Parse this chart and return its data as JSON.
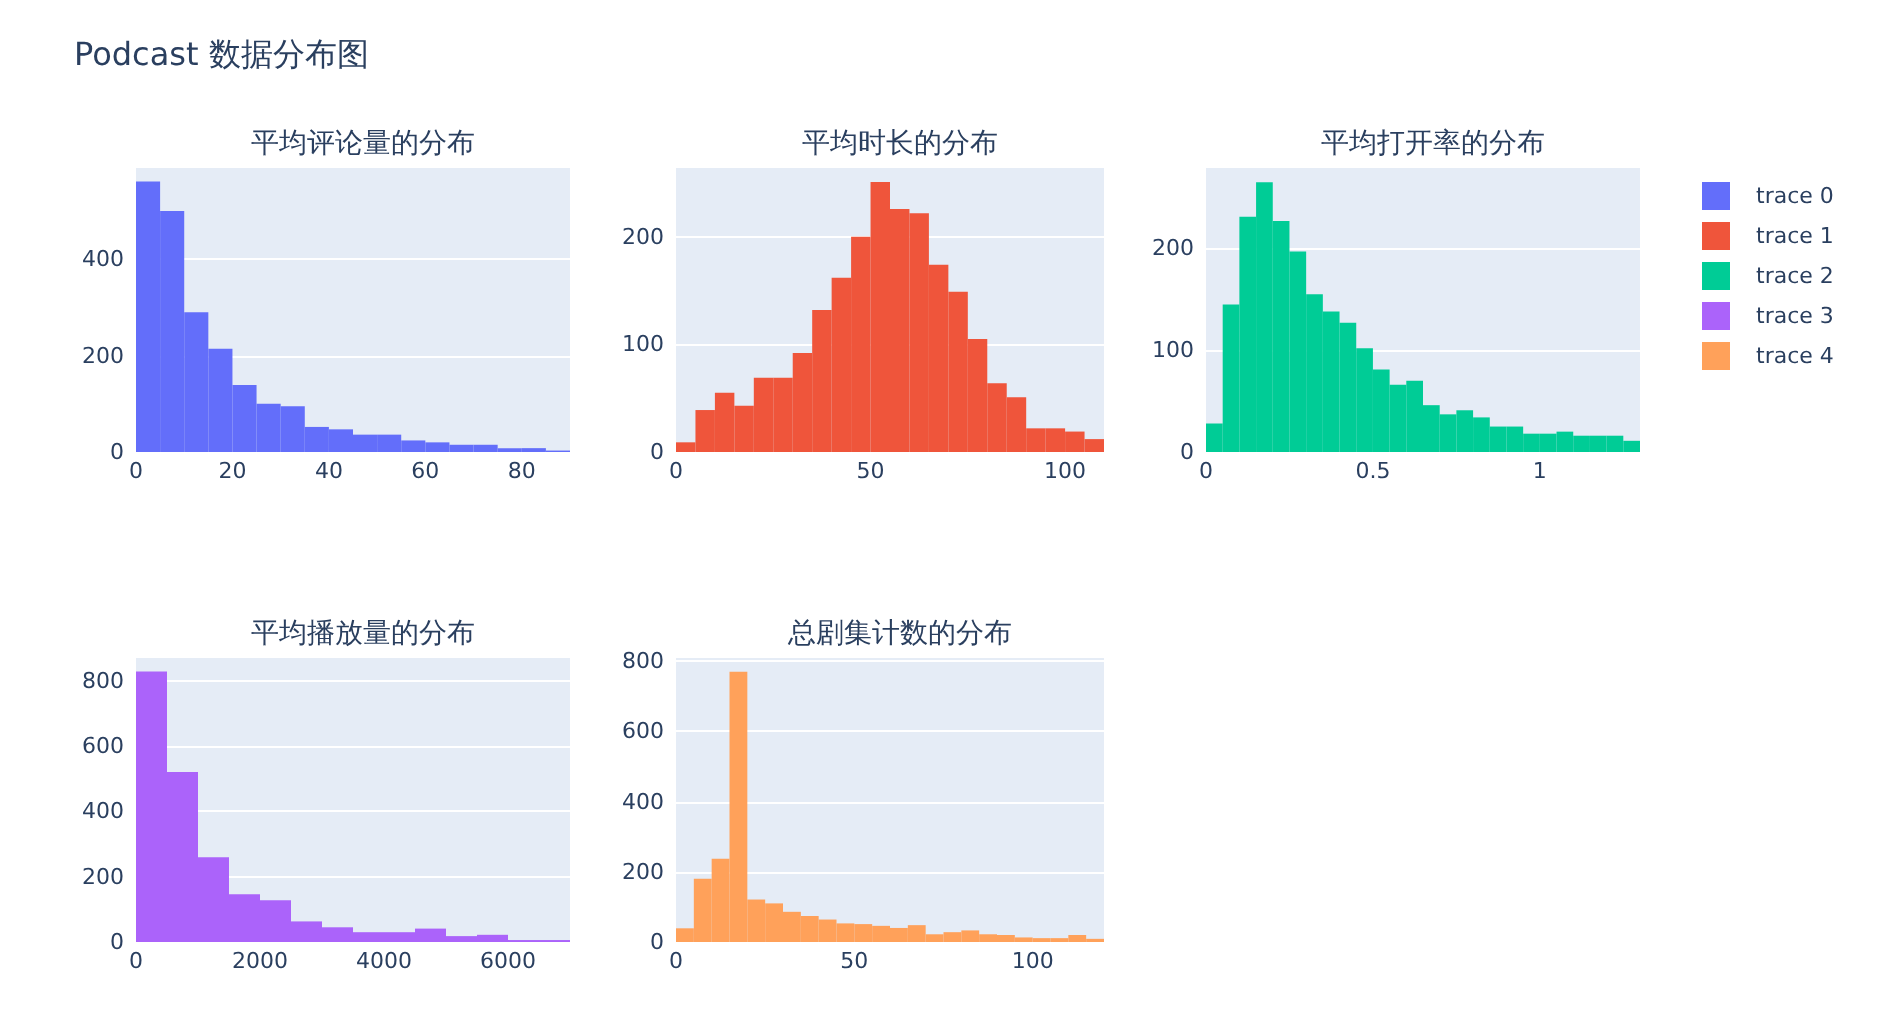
{
  "chart_data": [
    {
      "type": "histogram",
      "title": "Podcast 数据分布图",
      "subtitle": "平均评论量的分布",
      "bins": [
        0,
        5,
        10,
        15,
        20,
        25,
        30,
        35,
        40,
        45,
        50,
        55,
        60,
        65,
        70,
        75,
        80,
        85,
        90
      ],
      "series": [
        {
          "name": "trace 0",
          "color": "#636efa",
          "values": [
            561,
            500,
            290,
            214,
            139,
            100,
            95,
            52,
            47,
            36,
            36,
            24,
            20,
            15,
            15,
            8,
            8,
            3
          ]
        }
      ],
      "xlim": [
        0,
        90
      ],
      "xticks": [
        0,
        20,
        40,
        60,
        80
      ],
      "ylim": [
        0,
        589
      ],
      "yticks": [
        0,
        200,
        400
      ],
      "grid": "y",
      "legend": "right"
    },
    {
      "type": "histogram",
      "subtitle": "平均时长的分布",
      "bins": [
        0,
        5,
        10,
        15,
        20,
        25,
        30,
        35,
        40,
        45,
        50,
        55,
        60,
        65,
        70,
        75,
        80,
        85,
        90,
        95,
        100,
        105,
        110
      ],
      "series": [
        {
          "name": "trace 1",
          "color": "#ef553b",
          "values": [
            9,
            39,
            55,
            43,
            69,
            69,
            92,
            132,
            162,
            200,
            251,
            226,
            222,
            174,
            149,
            105,
            64,
            51,
            22,
            22,
            19,
            12
          ]
        }
      ],
      "xlim": [
        0,
        110
      ],
      "xticks": [
        0,
        50,
        100
      ],
      "ylim": [
        0,
        264
      ],
      "yticks": [
        0,
        100,
        200
      ],
      "grid": "y",
      "legend": "right"
    },
    {
      "type": "histogram",
      "subtitle": "平均打开率的分布",
      "bins": [
        0,
        0.05,
        0.1,
        0.15,
        0.2,
        0.25,
        0.3,
        0.35,
        0.4,
        0.45,
        0.5,
        0.55,
        0.6,
        0.65,
        0.7,
        0.75,
        0.8,
        0.85,
        0.9,
        0.95,
        1,
        1.05,
        1.1,
        1.15,
        1.2,
        1.25,
        1.3
      ],
      "series": [
        {
          "name": "trace 2",
          "color": "#00cc96",
          "values": [
            28,
            145,
            231,
            265,
            227,
            197,
            155,
            138,
            127,
            102,
            81,
            66,
            70,
            46,
            37,
            41,
            34,
            25,
            25,
            18,
            18,
            20,
            16,
            16,
            16,
            11
          ]
        }
      ],
      "xlim": [
        0,
        1.3
      ],
      "xticks": [
        0,
        0.5,
        1
      ],
      "ylim": [
        0,
        279
      ],
      "yticks": [
        0,
        100,
        200
      ],
      "grid": "y",
      "legend": "right"
    },
    {
      "type": "histogram",
      "subtitle": "平均播放量的分布",
      "bins": [
        0,
        500,
        1000,
        1500,
        2000,
        2500,
        3000,
        3500,
        4000,
        4500,
        5000,
        5500,
        6000,
        6500,
        7000
      ],
      "series": [
        {
          "name": "trace 3",
          "color": "#ab63fa",
          "values": [
            828,
            520,
            259,
            146,
            128,
            63,
            45,
            30,
            30,
            41,
            18,
            22,
            6,
            6
          ]
        }
      ],
      "xlim": [
        0,
        7000
      ],
      "xticks": [
        0,
        2000,
        4000,
        6000
      ],
      "ylim": [
        0,
        869
      ],
      "yticks": [
        0,
        200,
        400,
        600,
        800
      ],
      "grid": "y",
      "legend": "right"
    },
    {
      "type": "histogram",
      "subtitle": "总剧集计数的分布",
      "bins": [
        0,
        5,
        10,
        15,
        20,
        25,
        30,
        35,
        40,
        45,
        50,
        55,
        60,
        65,
        70,
        75,
        80,
        85,
        90,
        95,
        100,
        105,
        110,
        115,
        120
      ],
      "series": [
        {
          "name": "trace 4",
          "color": "#ffa15a",
          "values": [
            39,
            180,
            237,
            770,
            121,
            110,
            86,
            74,
            64,
            53,
            51,
            46,
            40,
            48,
            22,
            28,
            33,
            22,
            20,
            13,
            11,
            11,
            20,
            9
          ]
        }
      ],
      "xlim": [
        0,
        120
      ],
      "xticks": [
        0,
        50,
        100
      ],
      "ylim": [
        0,
        809
      ],
      "yticks": [
        0,
        200,
        400,
        600,
        800
      ],
      "grid": "y",
      "legend": "right"
    }
  ]
}
